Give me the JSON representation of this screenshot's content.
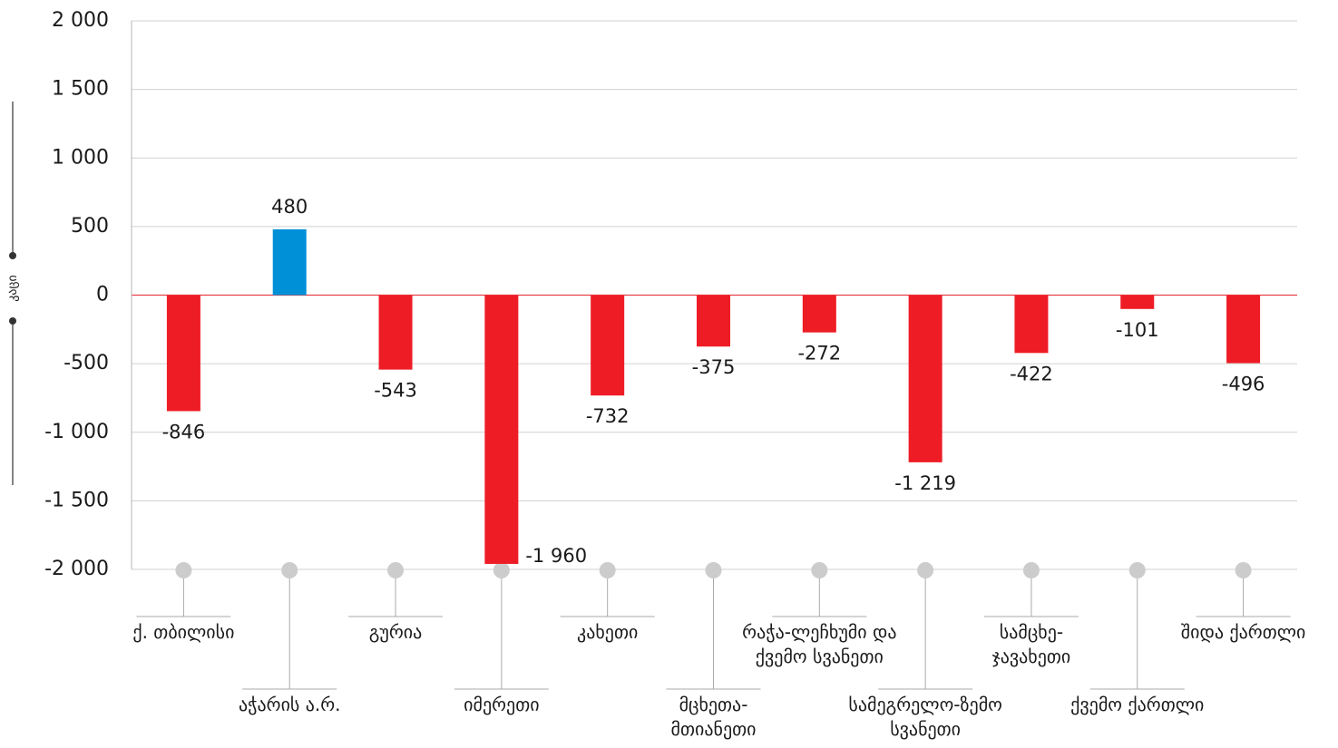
{
  "chart_data": {
    "type": "bar",
    "ylabel": "კაცი",
    "ylim": [
      -2000,
      2000
    ],
    "yticks": [
      2000,
      1500,
      1000,
      500,
      0,
      -500,
      -1000,
      -1500,
      -2000
    ],
    "ytick_labels": [
      "2 000",
      "1 500",
      "1 000",
      "500",
      "0",
      "-500",
      "-1 000",
      "-1 500",
      "-2 000"
    ],
    "grid": true,
    "categories": [
      "ქ. თბილისი",
      "აჭარის ა.რ.",
      "გურია",
      "იმერეთი",
      "კახეთი",
      "მცხეთა-მთიანეთი",
      "რაჭა-ლეჩხუმი და ქვემო სვანეთი",
      "სამეგრელო-ზემო სვანეთი",
      "სამცხე-ჯავახეთი",
      "ქვემო ქართლი",
      "შიდა ქართლი"
    ],
    "category_lines": [
      [
        "ქ. თბილისი"
      ],
      [
        "აჭარის ა.რ."
      ],
      [
        "გურია"
      ],
      [
        "იმერეთი"
      ],
      [
        "კახეთი"
      ],
      [
        "მცხეთა-",
        "მთიანეთი"
      ],
      [
        "რაჭა-ლეჩხუმი და",
        "ქვემო სვანეთი"
      ],
      [
        "სამეგრელო-ზემო",
        "სვანეთი"
      ],
      [
        "სამცხე-",
        "ჯავახეთი"
      ],
      [
        "ქვემო ქართლი"
      ],
      [
        "შიდა ქართლი"
      ]
    ],
    "values": [
      -846,
      480,
      -543,
      -1960,
      -732,
      -375,
      -272,
      -1219,
      -422,
      -101,
      -496
    ],
    "value_labels": [
      "-846",
      "480",
      "-543",
      "-1 960",
      "-732",
      "-375",
      "-272",
      "-1 219",
      "-422",
      "-101",
      "-496"
    ],
    "colors": {
      "positive": "#0090d8",
      "negative": "#ee1c25",
      "zero_line": "#e8404a",
      "grid": "#d0d0d0",
      "axis": "#b5b5b5",
      "marker": "#cccccc",
      "connector": "#aaaaaa",
      "text": "#1a1a1a"
    }
  }
}
